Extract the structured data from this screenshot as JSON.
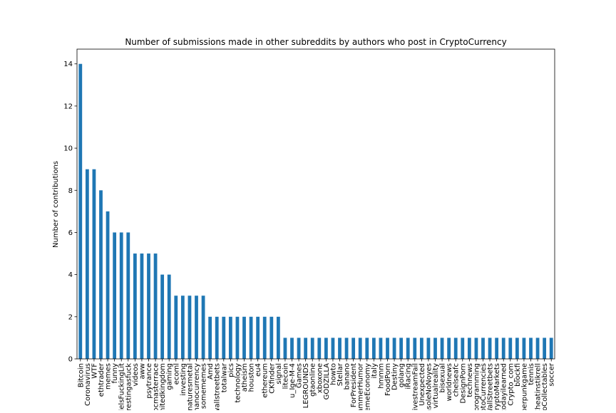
{
  "chart_data": {
    "type": "bar",
    "title": "Number of submissions made in other subreddits by authors who post in CryptoCurrency",
    "xlabel": "",
    "ylabel": "Number of contributions",
    "ylim": [
      0,
      14.7
    ],
    "yticks": [
      0,
      2,
      4,
      6,
      8,
      10,
      12,
      14
    ],
    "grid": false,
    "bar_color": "#1f77b4",
    "categories": [
      "Bitcoin",
      "Coronavirus",
      "WTF",
      "ethtrader",
      "memes",
      "funny",
      "ModelsFuckingLit",
      "interestingasfuck",
      "videos",
      "aww",
      "psytrance",
      "pcmasterrace",
      "unitedkingdom",
      "gaming",
      "ecoml",
      "investing",
      "naturesmetal",
      "nanocurrency",
      "somememes",
      "Amd",
      "wallstreetbets",
      "totalwar",
      "pics",
      "technology",
      "atheism",
      "houston",
      "eu4",
      "ethereum",
      "CKfinder",
      "signal",
      "litecoin",
      "u_Ige-M-4",
      "Games",
      "LEGROUNDS",
      "gtaonline",
      "xboxone",
      "GODZILLA",
      "howto",
      "Stellar",
      "banano",
      "ForPresident",
      "ProgrammerHumor",
      "MemeEconomy",
      "italy",
      "hmmm",
      "FoodPorn",
      "Destiny",
      "golang",
      "iRacing",
      "LivestreamFail",
      "Unexpected",
      "ConsoleNoNoyes",
      "virtualreality",
      "bisexual",
      "worldnews",
      "chelseafc",
      "DesignPorn",
      "technews",
      "programming",
      "CryptoCurrencies",
      "WallStreetbets",
      "CryptoMarkets",
      "todayilearned",
      "Crypto_com",
      "blockfi",
      "cyberpunkgame",
      "tennis",
      "Cheatinstikrell",
      "CryptoCollectables",
      "soccer"
    ],
    "values": [
      14,
      9,
      9,
      8,
      7,
      6,
      6,
      6,
      5,
      5,
      5,
      5,
      4,
      4,
      3,
      3,
      3,
      3,
      3,
      2,
      2,
      2,
      2,
      2,
      2,
      2,
      2,
      2,
      2,
      2,
      1,
      1,
      1,
      1,
      1,
      1,
      1,
      1,
      1,
      1,
      1,
      1,
      1,
      1,
      1,
      1,
      1,
      1,
      1,
      1,
      1,
      1,
      1,
      1,
      1,
      1,
      1,
      1,
      1,
      1,
      1,
      1,
      1,
      1,
      1,
      1,
      1,
      1,
      1,
      1
    ]
  }
}
